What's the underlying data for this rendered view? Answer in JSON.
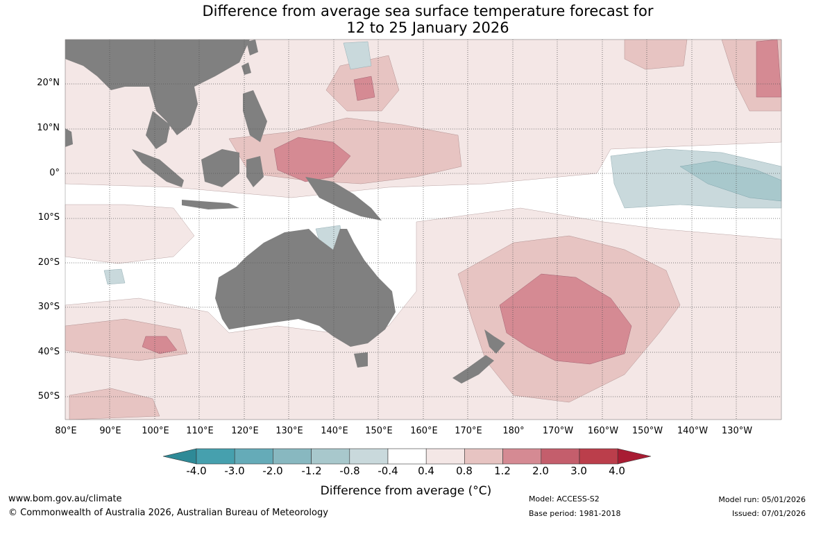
{
  "title": {
    "line1": "Difference from average sea surface temperature forecast for",
    "line2": "12 to 25 January 2026"
  },
  "map": {
    "lat_labels": [
      "20°N",
      "10°N",
      "0°",
      "10°S",
      "20°S",
      "30°S",
      "40°S",
      "50°S"
    ],
    "lon_labels": [
      "80°E",
      "90°E",
      "100°E",
      "110°E",
      "120°E",
      "130°E",
      "140°E",
      "150°E",
      "160°E",
      "170°E",
      "180°",
      "170°W",
      "160°W",
      "150°W",
      "140°W",
      "130°W"
    ],
    "land_color": "#808080",
    "grid_color": "#555555"
  },
  "colorbar": {
    "ticks": [
      "-4.0",
      "-3.0",
      "-2.0",
      "-1.2",
      "-0.8",
      "-0.4",
      "0.4",
      "0.8",
      "1.2",
      "2.0",
      "3.0",
      "4.0"
    ],
    "colors": [
      "#2e8a97",
      "#46a0ae",
      "#65abb8",
      "#88b8c0",
      "#a8c8cc",
      "#c9d9dc",
      "#ffffff",
      "#f4e7e6",
      "#e7c4c2",
      "#d58a93",
      "#c45e6c",
      "#bb3e4b",
      "#a81c33"
    ],
    "title": "Difference from average (°C)"
  },
  "footer": {
    "website": "www.bom.gov.au/climate",
    "copyright": "© Commonwealth of Australia 2026, Australian Bureau of Meteorology",
    "model": "Model: ACCESS-S2",
    "base_period": "Base period: 1981-2018",
    "model_run": "Model run: 05/01/2026",
    "issued": "Issued: 07/01/2026"
  }
}
